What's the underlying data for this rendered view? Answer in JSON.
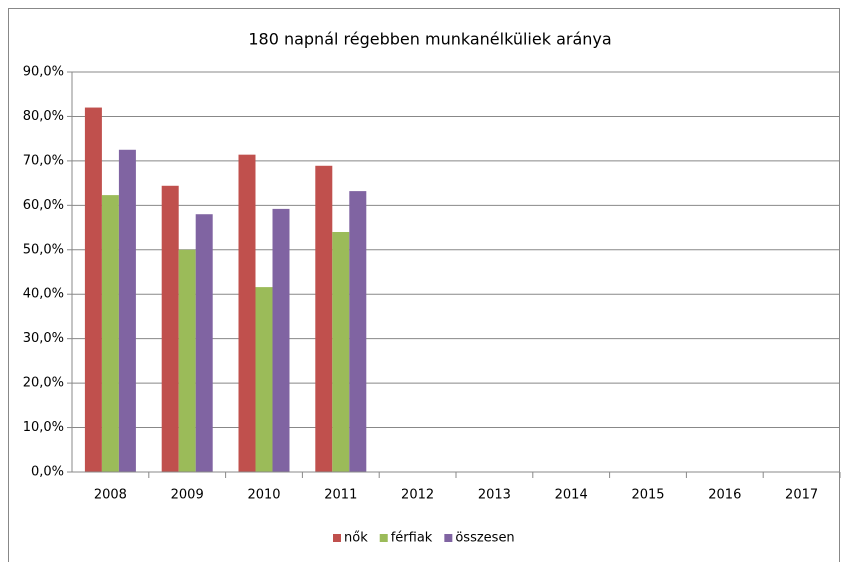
{
  "chart_data": {
    "type": "bar",
    "title": "180 napnál régebben munkanélküliek aránya",
    "categories": [
      "2008",
      "2009",
      "2010",
      "2011",
      "2012",
      "2013",
      "2014",
      "2015",
      "2016",
      "2017"
    ],
    "series": [
      {
        "name": "nők",
        "color": "#c0504d",
        "values": [
          82,
          64.4,
          71.4,
          68.9,
          null,
          null,
          null,
          null,
          null,
          null
        ]
      },
      {
        "name": "férfiak",
        "color": "#9bbb59",
        "values": [
          62.3,
          50,
          41.6,
          54,
          null,
          null,
          null,
          null,
          null,
          null
        ]
      },
      {
        "name": "összesen",
        "color": "#8064a2",
        "values": [
          72.5,
          58,
          59.2,
          63.2,
          null,
          null,
          null,
          null,
          null,
          null
        ]
      }
    ],
    "ylim": [
      0,
      90
    ],
    "yticks": [
      {
        "value": 0,
        "label": "0,0%"
      },
      {
        "value": 10,
        "label": "10,0%"
      },
      {
        "value": 20,
        "label": "20,0%"
      },
      {
        "value": 30,
        "label": "30,0%"
      },
      {
        "value": 40,
        "label": "40,0%"
      },
      {
        "value": 50,
        "label": "50,0%"
      },
      {
        "value": 60,
        "label": "60,0%"
      },
      {
        "value": 70,
        "label": "70,0%"
      },
      {
        "value": 80,
        "label": "80,0%"
      },
      {
        "value": 90,
        "label": "90,0%"
      }
    ],
    "grid": true,
    "legend": "bottom"
  }
}
